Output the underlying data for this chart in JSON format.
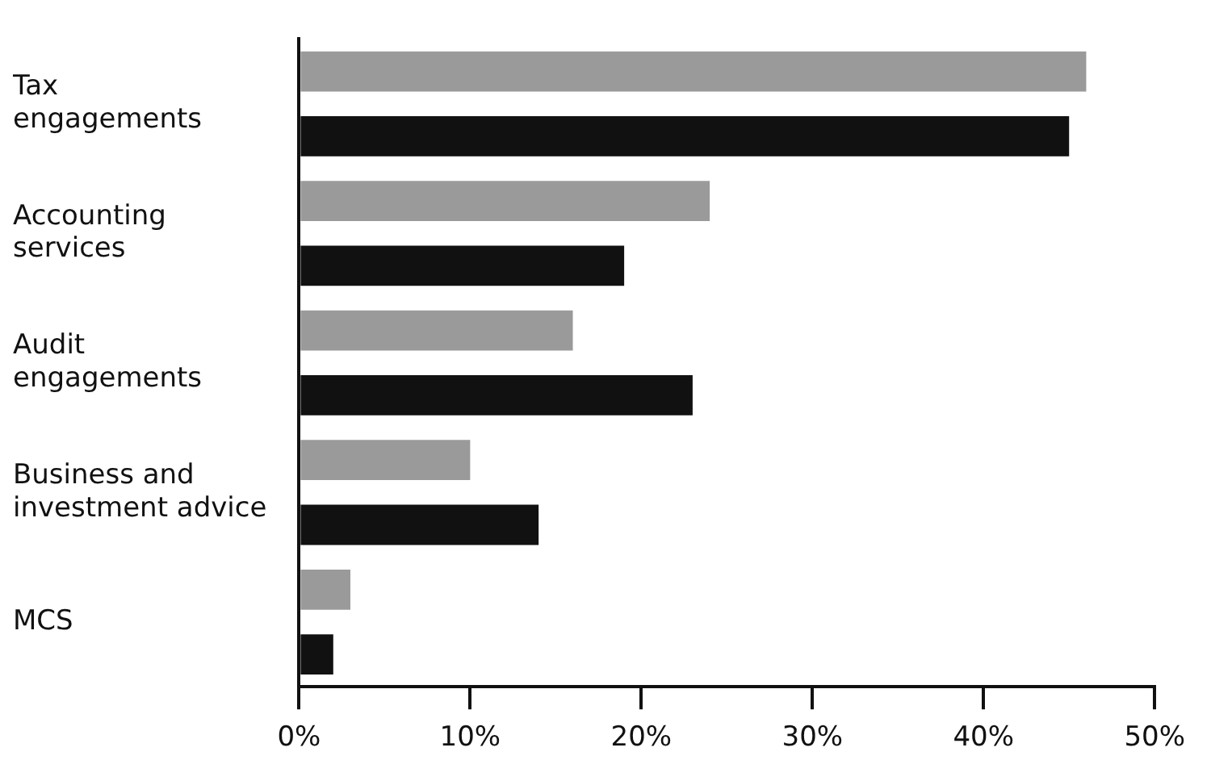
{
  "chart_data": {
    "type": "bar",
    "orientation": "horizontal",
    "categories": [
      "Tax\nengagements",
      "Accounting\nservices",
      "Audit\nengagements",
      "Business and\ninvestment advice",
      "MCS"
    ],
    "series": [
      {
        "color": "#9a9a9a",
        "values": [
          46,
          24,
          16,
          10,
          3
        ]
      },
      {
        "color": "#111111",
        "values": [
          45,
          19,
          23,
          14,
          2
        ]
      }
    ],
    "xlim": [
      0,
      50
    ],
    "xticks": [
      {
        "value": 0,
        "label": "0%"
      },
      {
        "value": 10,
        "label": "10%"
      },
      {
        "value": 20,
        "label": "20%"
      },
      {
        "value": 30,
        "label": "30%"
      },
      {
        "value": 40,
        "label": "40%"
      },
      {
        "value": 50,
        "label": "50%"
      }
    ],
    "grid": false,
    "legend": false
  }
}
